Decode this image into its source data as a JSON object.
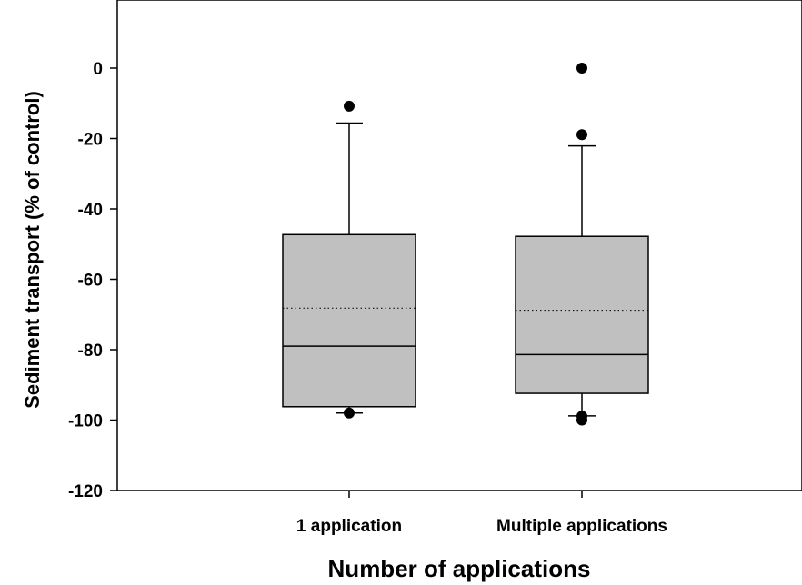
{
  "chart_data": {
    "type": "box",
    "title": "",
    "xlabel": "Number of applications",
    "ylabel": "Sediment transport (% of control)",
    "ylim": [
      -120,
      15
    ],
    "yticks": [
      0,
      -20,
      -40,
      -60,
      -80,
      -100,
      -120
    ],
    "grid": false,
    "categories": [
      "1 application",
      "Multiple applications"
    ],
    "boxes": [
      {
        "category": "1 application",
        "whisker_high": -15.6,
        "q3": -47.3,
        "mean": -68.2,
        "median": -79.0,
        "q1": -96.2,
        "whisker_low": -98.0,
        "outliers": [
          -10.8,
          -98.0
        ]
      },
      {
        "category": "Multiple applications",
        "whisker_high": -22.1,
        "q3": -47.8,
        "mean": -68.8,
        "median": -81.4,
        "q1": -92.4,
        "whisker_low": -98.8,
        "outliers": [
          0.0,
          -18.9,
          -98.9,
          -100.0
        ]
      }
    ],
    "colors": {
      "box_fill": "#c0c0c0",
      "line": "#000000"
    }
  }
}
